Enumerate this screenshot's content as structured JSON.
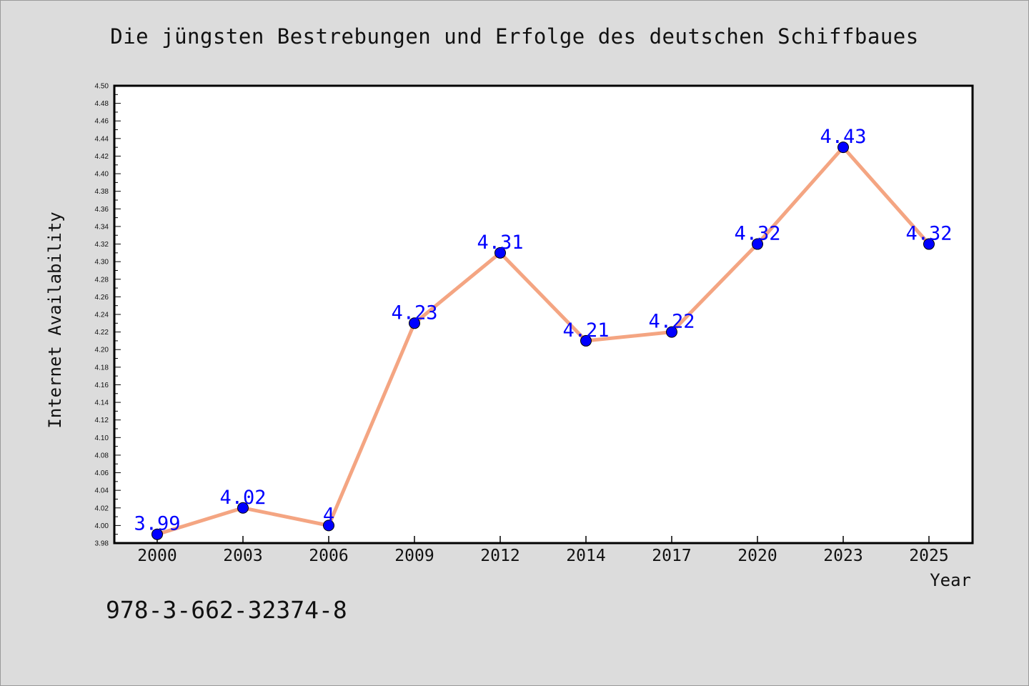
{
  "chart_data": {
    "type": "line",
    "title": "Die jüngsten Bestrebungen und Erfolge des deutschen Schiffbaues",
    "xlabel": "Year",
    "ylabel": "Internet Availability",
    "categories": [
      "2000",
      "2003",
      "2006",
      "2009",
      "2012",
      "2014",
      "2017",
      "2020",
      "2023",
      "2025"
    ],
    "series": [
      {
        "values": [
          3.99,
          4.02,
          4.0,
          4.23,
          4.31,
          4.21,
          4.22,
          4.32,
          4.43,
          4.32
        ],
        "data_labels": [
          "3.99",
          "4.02",
          "4",
          "4.23",
          "4.31",
          "4.21",
          "4.22",
          "4.32",
          "4.43",
          "4.32"
        ],
        "line_color": "#f4a582",
        "marker_color": "#0000ff",
        "label_color": "#0000ff"
      }
    ],
    "ylim": [
      3.98,
      4.5
    ],
    "ytick_step": 0.02,
    "ytick_decimals": 2,
    "grid": false,
    "legend": "none"
  },
  "footer": {
    "isbn": "978-3-662-32374-8"
  },
  "colors": {
    "background": "#dcdcdc",
    "plot_background": "#ffffff",
    "axis": "#000000"
  }
}
